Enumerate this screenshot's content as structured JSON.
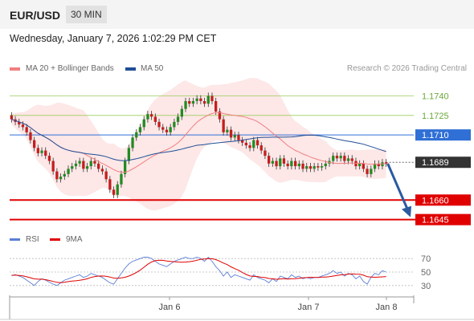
{
  "header": {
    "symbol": "EUR/USD",
    "timeframe": "30 MIN"
  },
  "timestamp": "Wednesday, January 7, 2026 1:02:29 PM CET",
  "legend": {
    "bollinger": "MA 20 + Bollinger Bands",
    "ma50": "MA 50",
    "rsi": "RSI",
    "rsi_ma": "9MA"
  },
  "copyright": "Research © 2026 Trading Central",
  "colors": {
    "bollinger": "#f08080",
    "ma50": "#1f4e96",
    "resistance": "#9acd5a",
    "pivot": "#2f6fd6",
    "support": "#e00000",
    "current": "#333333",
    "up": "#228b22",
    "down": "#c41e1e",
    "rsi": "#5b7fd6",
    "rsi_ma": "#e00000",
    "arrow": "#2b5aa0"
  },
  "chart_data": {
    "type": "candlestick",
    "ylim": [
      1.1638,
      1.1752
    ],
    "x_ticks": [
      "Jan 6",
      "Jan 7",
      "Jan 8"
    ],
    "levels": [
      {
        "value": 1.174,
        "label": "1.1740",
        "kind": "resistance"
      },
      {
        "value": 1.1725,
        "label": "1.1725",
        "kind": "resistance"
      },
      {
        "value": 1.171,
        "label": "1.1710",
        "kind": "pivot"
      },
      {
        "value": 1.1689,
        "label": "1.1689",
        "kind": "current"
      },
      {
        "value": 1.166,
        "label": "1.1660",
        "kind": "support"
      },
      {
        "value": 1.1645,
        "label": "1.1645",
        "kind": "support"
      }
    ],
    "close": [
      1.1722,
      1.172,
      1.1718,
      1.1716,
      1.1712,
      1.1706,
      1.17,
      1.1696,
      1.1698,
      1.1694,
      1.169,
      1.1682,
      1.1676,
      1.1678,
      1.168,
      1.1684,
      1.1686,
      1.1688,
      1.169,
      1.1684,
      1.1686,
      1.169,
      1.1688,
      1.1684,
      1.1682,
      1.1676,
      1.1668,
      1.1664,
      1.1672,
      1.168,
      1.169,
      1.17,
      1.1708,
      1.1712,
      1.1716,
      1.1722,
      1.1726,
      1.1724,
      1.172,
      1.1716,
      1.1714,
      1.1712,
      1.1716,
      1.172,
      1.1724,
      1.173,
      1.1736,
      1.1734,
      1.1736,
      1.1738,
      1.1736,
      1.1734,
      1.174,
      1.1736,
      1.1728,
      1.1722,
      1.1712,
      1.1714,
      1.1708,
      1.171,
      1.1706,
      1.1704,
      1.1702,
      1.17,
      1.1706,
      1.1702,
      1.1698,
      1.1694,
      1.1688,
      1.169,
      1.1686,
      1.1692,
      1.1688,
      1.1686,
      1.169,
      1.1686,
      1.1688,
      1.1684,
      1.1686,
      1.1684,
      1.1686,
      1.1685,
      1.1686,
      1.1688,
      1.169,
      1.1694,
      1.1692,
      1.1694,
      1.169,
      1.1692,
      1.169,
      1.1686,
      1.1688,
      1.1684,
      1.168,
      1.1684,
      1.1688,
      1.1686,
      1.1689,
      1.1688
    ],
    "rsi": [
      45,
      46,
      44,
      42,
      38,
      34,
      30,
      36,
      40,
      38,
      35,
      32,
      30,
      34,
      38,
      40,
      42,
      44,
      46,
      42,
      44,
      48,
      46,
      44,
      42,
      38,
      34,
      32,
      40,
      48,
      56,
      62,
      66,
      68,
      70,
      72,
      72,
      70,
      66,
      62,
      60,
      58,
      62,
      66,
      68,
      70,
      72,
      70,
      70,
      72,
      70,
      66,
      72,
      66,
      58,
      52,
      44,
      50,
      42,
      46,
      44,
      42,
      40,
      38,
      46,
      42,
      40,
      38,
      34,
      40,
      36,
      44,
      42,
      40,
      46,
      42,
      44,
      40,
      42,
      40,
      42,
      42,
      44,
      46,
      48,
      52,
      48,
      50,
      44,
      48,
      46,
      40,
      44,
      36,
      32,
      42,
      48,
      46,
      52,
      50
    ],
    "rsi_ticks": [
      70,
      50,
      30
    ]
  }
}
